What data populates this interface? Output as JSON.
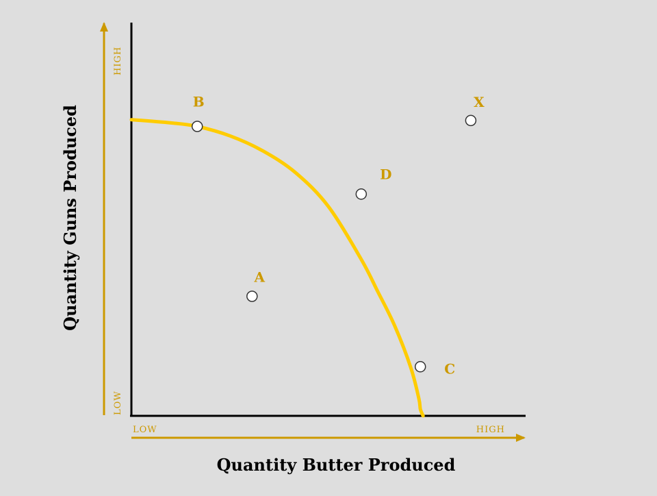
{
  "chart_data": {
    "type": "line",
    "title": "",
    "xlabel": "Quantity Butter Produced",
    "ylabel": "Quantity Guns Produced",
    "xlim": [
      0,
      100
    ],
    "ylim": [
      0,
      100
    ],
    "grid": false,
    "x_axis_ends": {
      "low": "LOW",
      "high": "HIGH"
    },
    "y_axis_ends": {
      "low": "LOW",
      "high": "HIGH"
    },
    "series": [
      {
        "x": [
          0,
          10,
          16.7,
          25,
          33.3,
          41.7,
          50,
          58.3,
          62.5,
          66.7,
          70.8,
          72.9,
          73.3,
          74
        ],
        "y": [
          75.3,
          74.5,
          73.6,
          71.2,
          67.4,
          61.8,
          53.2,
          39.8,
          31.6,
          23.1,
          12.5,
          4.5,
          1.7,
          0
        ]
      }
    ],
    "points": [
      {
        "label": "A",
        "x": 30.6,
        "y": 30.4
      },
      {
        "label": "B",
        "x": 16.7,
        "y": 73.6
      },
      {
        "label": "C",
        "x": 73.3,
        "y": 12.5
      },
      {
        "label": "D",
        "x": 58.3,
        "y": 56.4
      },
      {
        "label": "X",
        "x": 86.1,
        "y": 75.1
      }
    ],
    "colors": {
      "curve": "#ffcc00",
      "accent": "#cc9900",
      "axis": "#000000",
      "point_fill": "#ffffff",
      "point_stroke": "#333333"
    }
  }
}
